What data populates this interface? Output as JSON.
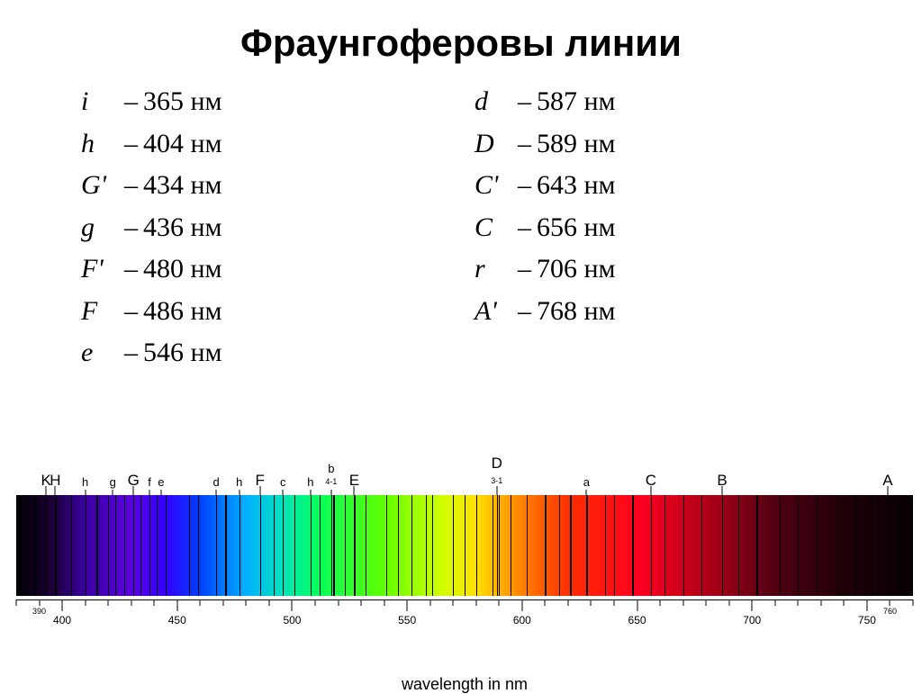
{
  "title": "Фраунгоферовы линии",
  "unit_suffix": "нм",
  "left_column": [
    {
      "symbol": "i",
      "value": 365
    },
    {
      "symbol": "h",
      "value": 404
    },
    {
      "symbol": "G'",
      "value": 434
    },
    {
      "symbol": "g",
      "value": 436
    },
    {
      "symbol": "F'",
      "value": 480
    },
    {
      "symbol": "F",
      "value": 486
    },
    {
      "symbol": "e",
      "value": 546
    }
  ],
  "right_column": [
    {
      "symbol": "d",
      "value": 587
    },
    {
      "symbol": "D",
      "value": 589
    },
    {
      "symbol": "C'",
      "value": 643
    },
    {
      "symbol": "C",
      "value": 656
    },
    {
      "symbol": "r",
      "value": 706
    },
    {
      "symbol": "A'",
      "value": 768
    }
  ],
  "spectrum": {
    "domain_nm": [
      380,
      770
    ],
    "gradient_stops": [
      {
        "nm": 380,
        "color": "#020003"
      },
      {
        "nm": 395,
        "color": "#1a0033"
      },
      {
        "nm": 410,
        "color": "#3a00a0"
      },
      {
        "nm": 430,
        "color": "#5a00e0"
      },
      {
        "nm": 445,
        "color": "#3400ff"
      },
      {
        "nm": 460,
        "color": "#0040ff"
      },
      {
        "nm": 480,
        "color": "#00b0ff"
      },
      {
        "nm": 495,
        "color": "#00e0c0"
      },
      {
        "nm": 510,
        "color": "#00ff60"
      },
      {
        "nm": 540,
        "color": "#60ff00"
      },
      {
        "nm": 565,
        "color": "#d0ff00"
      },
      {
        "nm": 580,
        "color": "#ffe000"
      },
      {
        "nm": 600,
        "color": "#ff8000"
      },
      {
        "nm": 620,
        "color": "#ff3000"
      },
      {
        "nm": 650,
        "color": "#ff0020"
      },
      {
        "nm": 680,
        "color": "#b00018"
      },
      {
        "nm": 710,
        "color": "#500012"
      },
      {
        "nm": 740,
        "color": "#200008"
      },
      {
        "nm": 770,
        "color": "#050003"
      }
    ],
    "top_labels": [
      {
        "label": "K",
        "nm": 393,
        "major": true
      },
      {
        "label": "H",
        "nm": 397,
        "major": true
      },
      {
        "label": "h",
        "nm": 410,
        "major": false
      },
      {
        "label": "g",
        "nm": 422,
        "major": false
      },
      {
        "label": "G",
        "nm": 431,
        "major": true
      },
      {
        "label": "f",
        "nm": 438,
        "major": false
      },
      {
        "label": "e",
        "nm": 443,
        "major": false
      },
      {
        "label": "d",
        "nm": 467,
        "major": false
      },
      {
        "label": "h",
        "nm": 477,
        "major": false
      },
      {
        "label": "F",
        "nm": 486,
        "major": true
      },
      {
        "label": "c",
        "nm": 496,
        "major": false
      },
      {
        "label": "h",
        "nm": 508,
        "major": false
      },
      {
        "label": "b",
        "nm": 517,
        "major": false,
        "stack": "4-1"
      },
      {
        "label": "E",
        "nm": 527,
        "major": true
      },
      {
        "label": "D",
        "nm": 589,
        "major": true,
        "stack": "3-1"
      },
      {
        "label": "a",
        "nm": 628,
        "major": false
      },
      {
        "label": "C",
        "nm": 656,
        "major": true
      },
      {
        "label": "B",
        "nm": 687,
        "major": true
      },
      {
        "label": "A",
        "nm": 759,
        "major": true
      }
    ],
    "absorption_lines_nm": [
      382,
      385,
      388,
      393,
      397,
      404,
      410,
      415,
      420,
      423,
      427,
      431,
      434,
      438,
      441,
      445,
      455,
      459,
      467,
      471,
      477,
      486,
      492,
      496,
      501,
      508,
      512,
      517,
      518,
      523,
      527,
      532,
      541,
      546,
      552,
      558,
      561,
      570,
      575,
      580,
      587,
      589,
      590,
      595,
      602,
      610,
      616,
      621,
      628,
      636,
      640,
      648,
      656,
      662,
      670,
      678,
      687,
      694,
      702,
      712,
      720,
      728,
      737,
      745,
      752,
      759,
      765
    ],
    "axis": {
      "title": "wavelength in nm",
      "major_step": 50,
      "minor_step": 10,
      "label_start": 400,
      "label_end": 750,
      "edge_labels": [
        390,
        760
      ],
      "label_fontsize": 12,
      "title_fontsize": 18
    }
  }
}
